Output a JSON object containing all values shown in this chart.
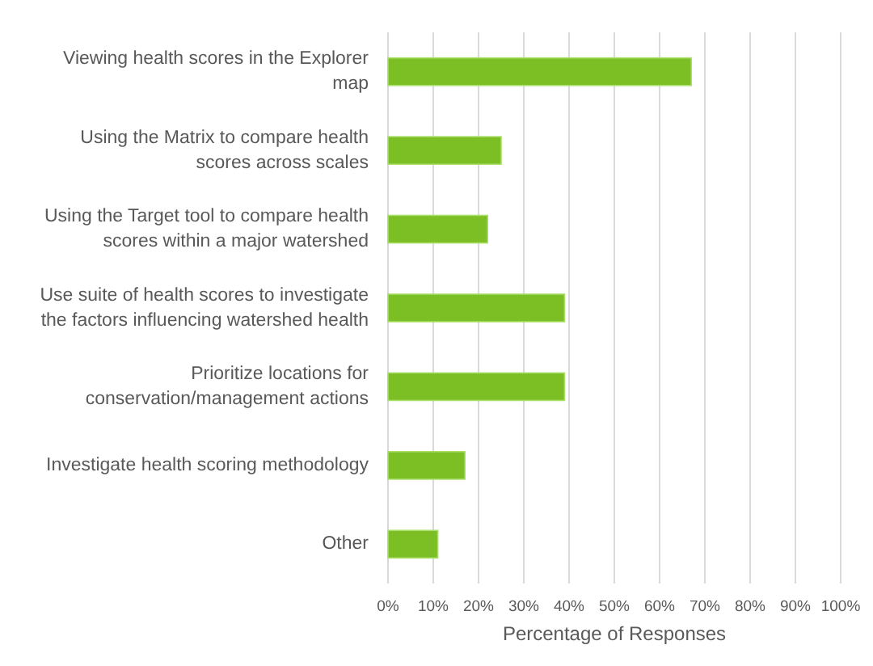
{
  "chart_data": {
    "type": "bar",
    "orientation": "horizontal",
    "xlabel": "Percentage of Responses",
    "categories": [
      "Viewing health scores in the Explorer map",
      "Using the Matrix to compare health scores across scales",
      "Using the Target tool to compare health scores within a major watershed",
      "Use suite of health scores to investigate the factors influencing watershed health",
      "Prioritize locations for conservation/management actions",
      "Investigate health scoring methodology",
      "Other"
    ],
    "values": [
      67,
      25,
      22,
      39,
      39,
      17,
      11
    ],
    "color": "#7bbf24",
    "xlim": [
      0,
      100
    ],
    "xticks": [
      {
        "value": 0,
        "label": "0%"
      },
      {
        "value": 10,
        "label": "10%"
      },
      {
        "value": 20,
        "label": "20%"
      },
      {
        "value": 30,
        "label": "30%"
      },
      {
        "value": 40,
        "label": "40%"
      },
      {
        "value": 50,
        "label": "50%"
      },
      {
        "value": 60,
        "label": "60%"
      },
      {
        "value": 70,
        "label": "70%"
      },
      {
        "value": 80,
        "label": "80%"
      },
      {
        "value": 90,
        "label": "90%"
      },
      {
        "value": 100,
        "label": "100%"
      }
    ],
    "grid": "x"
  }
}
